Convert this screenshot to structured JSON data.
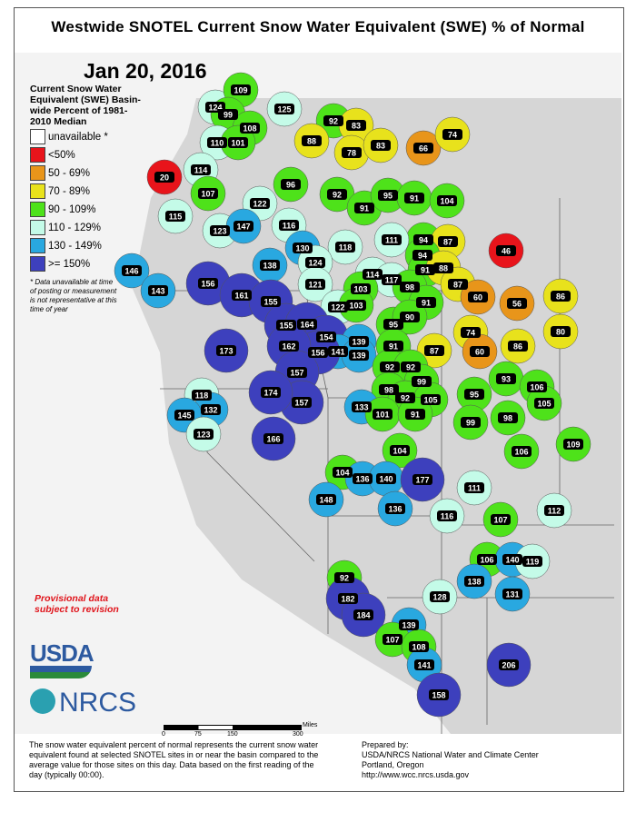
{
  "title": "Westwide SNOTEL Current Snow Water Equivalent (SWE) % of Normal",
  "date": "Jan 20, 2016",
  "legend": {
    "title": "Current Snow Water Equivalent (SWE) Basin-wide Percent of 1981-2010 Median",
    "items": [
      {
        "label": "unavailable *",
        "color": "#ffffff"
      },
      {
        "label": "<50%",
        "color": "#e8141b"
      },
      {
        "label": "50 - 69%",
        "color": "#e8951a"
      },
      {
        "label": "70 - 89%",
        "color": "#e8e21c"
      },
      {
        "label": "90 - 109%",
        "color": "#4ee21a"
      },
      {
        "label": "110 - 129%",
        "color": "#c4fbe8"
      },
      {
        "label": "130 - 149%",
        "color": "#29a8e0"
      },
      {
        "label": ">= 150%",
        "color": "#3d40bd"
      }
    ],
    "note": "Data unavailable at time of posting or measurement is not representative at this time of year"
  },
  "provisional": "Provisional data subject to revision",
  "logos": {
    "usda": "USDA",
    "nrcs": "NRCS"
  },
  "scale": {
    "unit": "Miles",
    "ticks": [
      "0",
      "75",
      "150",
      "300"
    ]
  },
  "description": "The snow water equivalent percent of normal represents the current snow water equivalent found at selected SNOTEL sites in or near the basin compared to the average value for those sites on this day. Data based on the first reading of the day (typically 00:00).",
  "prepared": {
    "line1": "Prepared by:",
    "line2": "USDA/NRCS National Water and Climate Center",
    "line3": "Portland, Oregon",
    "line4": "http://www.wcc.nrcs.usda.gov"
  },
  "basins": [
    124,
    109,
    99,
    108,
    125,
    110,
    101,
    92,
    83,
    88,
    78,
    83,
    66,
    74,
    20,
    114,
    107,
    96,
    92,
    91,
    95,
    91,
    104,
    115,
    123,
    122,
    147,
    116,
    94,
    87,
    111,
    130,
    118,
    146,
    143,
    156,
    161,
    138,
    155,
    124,
    121,
    114,
    117,
    103,
    122,
    103,
    94,
    91,
    88,
    87,
    98,
    91,
    60,
    46,
    56,
    86,
    80,
    155,
    164,
    154,
    139,
    141,
    139,
    156,
    162,
    173,
    95,
    90,
    91,
    87,
    74,
    60,
    86,
    92,
    92,
    99,
    93,
    106,
    105,
    157,
    157,
    174,
    118,
    132,
    145,
    123,
    166,
    98,
    92,
    105,
    95,
    133,
    101,
    91,
    99,
    98,
    106,
    109,
    104,
    104,
    136,
    140,
    177,
    148,
    136,
    111,
    116,
    107,
    112,
    106,
    140,
    119,
    138,
    131,
    128,
    92,
    182,
    184,
    139,
    107,
    108,
    141,
    206,
    158
  ]
}
